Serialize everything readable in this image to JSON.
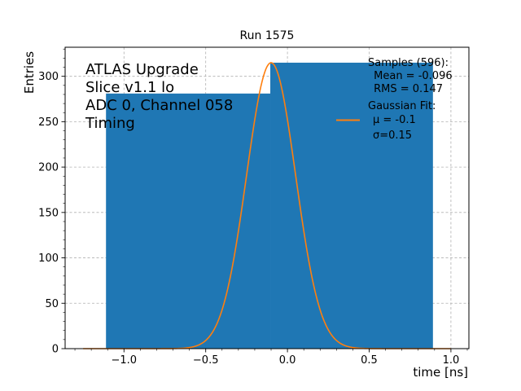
{
  "chart_data": {
    "type": "bar",
    "title": "Run 1575",
    "xlabel": "time [ns]",
    "ylabel": "Entries",
    "xlim": [
      -1.36,
      1.11
    ],
    "ylim": [
      0,
      332
    ],
    "grid": true,
    "xticks": [
      -1.0,
      -0.5,
      0.0,
      0.5,
      1.0
    ],
    "xtick_labels": [
      "−1.0",
      "−0.5",
      "0.0",
      "0.5",
      "1.0"
    ],
    "yticks": [
      0,
      50,
      100,
      150,
      200,
      250,
      300
    ],
    "ytick_labels": [
      "0",
      "50",
      "100",
      "150",
      "200",
      "250",
      "300"
    ],
    "histogram": {
      "name": "Samples (596)",
      "color": "#1f77b4",
      "bins": [
        {
          "x0": -1.11,
          "x1": -0.105,
          "count": 281
        },
        {
          "x0": -0.105,
          "x1": 0.89,
          "count": 315
        }
      ]
    },
    "fit": {
      "name": "Gaussian Fit",
      "color": "#ff7f0e",
      "mu": -0.1,
      "sigma": 0.15,
      "amplitude": 315,
      "x_range": [
        -1.25,
        1.0
      ]
    },
    "annotation_lines": [
      "ATLAS Upgrade",
      "Slice v1.1 lo",
      "ADC 0, Channel 058",
      "Timing"
    ],
    "legend": {
      "placement": "top-right",
      "stats_lines": [
        "Samples (596):",
        " Mean = -0.096",
        " RMS = 0.147"
      ],
      "fit_lines": [
        "Gaussian Fit:",
        " $\\mu$ = -0.1",
        " $\\sigma$=0.15"
      ],
      "fit_label_mu": "μ = -0.1",
      "fit_label_sigma": "σ=0.15"
    }
  }
}
